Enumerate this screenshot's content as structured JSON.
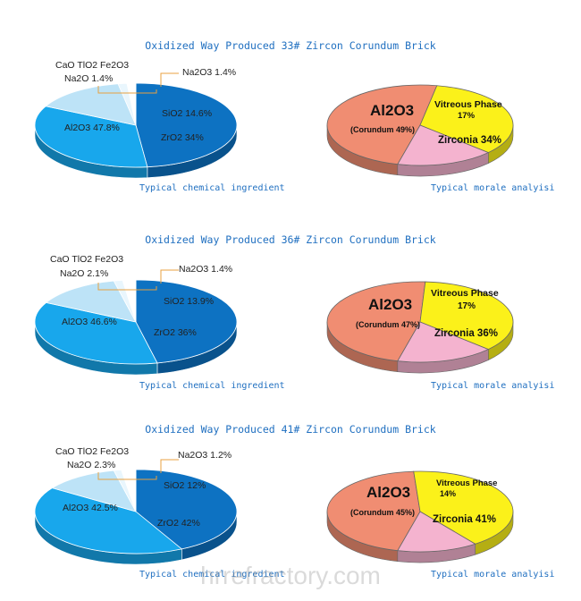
{
  "watermark": "hrrefractory.com",
  "colors": {
    "al2o3_chem": "#0d72c2",
    "zro2_chem": "#18a7ec",
    "sio2_chem": "#bde3f7",
    "na2o3_chem": "#e9f6fd",
    "cao_chem": "#ffffff",
    "corundum": "#f08d72",
    "vitreous": "#f4b3cf",
    "zirconia": "#fbf11a"
  },
  "charts": [
    {
      "title": "Oxidized Way Produced 33# Zircon Corundum Brick",
      "caption_left": "Typical chemical ingredient",
      "caption_right": "Typical morale analyisi",
      "callout_cao_line1": "CaO TlO2 Fe2O3",
      "callout_cao_line2": "Na2O 1.4%",
      "callout_na2o3": "Na2O3 1.4%",
      "chem_labels": {
        "al2o3": "Al2O3 47.8%",
        "zro2": "ZrO2 34%",
        "sio2": "SiO2 14.6%"
      },
      "mineral_labels": {
        "al2o3": "Al2O3",
        "corundum": "(Corundum 49%)",
        "vitreous_line1": "Vitreous Phase",
        "vitreous_line2": "17%",
        "zirconia": "Zirconia 34%"
      },
      "chem_slices": [
        {
          "name": "Al2O3",
          "value": 47.8
        },
        {
          "name": "ZrO2",
          "value": 34
        },
        {
          "name": "SiO2",
          "value": 14.6
        },
        {
          "name": "Na2O3",
          "value": 1.4
        },
        {
          "name": "CaO TlO2 Fe2O3 Na2O",
          "value": 1.4
        }
      ],
      "mineral_slices": [
        {
          "name": "Corundum",
          "value": 49
        },
        {
          "name": "Zirconia",
          "value": 34
        },
        {
          "name": "Vitreous Phase",
          "value": 17
        }
      ]
    },
    {
      "title": "Oxidized Way Produced 36# Zircon Corundum Brick",
      "caption_left": "Typical chemical ingredient",
      "caption_right": "Typical morale analyisi",
      "callout_cao_line1": "CaO TlO2 Fe2O3",
      "callout_cao_line2": "Na2O 2.1%",
      "callout_na2o3": "Na2O3 1.4%",
      "chem_labels": {
        "al2o3": "Al2O3 46.6%",
        "zro2": "ZrO2 36%",
        "sio2": "SiO2 13.9%"
      },
      "mineral_labels": {
        "al2o3": "Al2O3",
        "corundum": "(Corundum 47%)",
        "vitreous_line1": "Vitreous Phase",
        "vitreous_line2": "17%",
        "zirconia": "Zirconia 36%"
      },
      "chem_slices": [
        {
          "name": "Al2O3",
          "value": 46.6
        },
        {
          "name": "ZrO2",
          "value": 36
        },
        {
          "name": "SiO2",
          "value": 13.9
        },
        {
          "name": "Na2O3",
          "value": 1.4
        },
        {
          "name": "CaO TlO2 Fe2O3 Na2O",
          "value": 2.1
        }
      ],
      "mineral_slices": [
        {
          "name": "Corundum",
          "value": 47
        },
        {
          "name": "Zirconia",
          "value": 36
        },
        {
          "name": "Vitreous Phase",
          "value": 17
        }
      ]
    },
    {
      "title": "Oxidized Way Produced 41# Zircon Corundum Brick",
      "caption_left": "Typical chemical ingredient",
      "caption_right": "Typical morale analyisi",
      "callout_cao_line1": "CaO TlO2 Fe2O3",
      "callout_cao_line2": "Na2O 2.3%",
      "callout_na2o3": "Na2O3 1.2%",
      "chem_labels": {
        "al2o3": "Al2O3 42.5%",
        "zro2": "ZrO2 42%",
        "sio2": "SiO2 12%"
      },
      "mineral_labels": {
        "al2o3": "Al2O3",
        "corundum": "(Corundum 45%)",
        "vitreous_line1": "Vitreous Phase",
        "vitreous_line2": "14%",
        "zirconia": "Zirconia 41%"
      },
      "chem_slices": [
        {
          "name": "Al2O3",
          "value": 42.5
        },
        {
          "name": "ZrO2",
          "value": 42
        },
        {
          "name": "SiO2",
          "value": 12
        },
        {
          "name": "Na2O3",
          "value": 1.2
        },
        {
          "name": "CaO TlO2 Fe2O3 Na2O",
          "value": 2.3
        }
      ],
      "mineral_slices": [
        {
          "name": "Corundum",
          "value": 45
        },
        {
          "name": "Zirconia",
          "value": 41
        },
        {
          "name": "Vitreous Phase",
          "value": 14
        }
      ]
    }
  ],
  "chart_data": [
    {
      "type": "pie",
      "title": "Oxidized Way Produced 33# Zircon Corundum Brick",
      "subtitle": "Typical chemical ingredient",
      "categories": [
        "Al2O3",
        "ZrO2",
        "SiO2",
        "Na2O3",
        "CaO TlO2 Fe2O3 Na2O"
      ],
      "values": [
        47.8,
        34,
        14.6,
        1.4,
        1.4
      ]
    },
    {
      "type": "pie",
      "title": "Oxidized Way Produced 33# Zircon Corundum Brick",
      "subtitle": "Typical morale analyisi",
      "categories": [
        "Corundum",
        "Zirconia",
        "Vitreous Phase"
      ],
      "values": [
        49,
        34,
        17
      ]
    },
    {
      "type": "pie",
      "title": "Oxidized Way Produced 36# Zircon Corundum Brick",
      "subtitle": "Typical chemical ingredient",
      "categories": [
        "Al2O3",
        "ZrO2",
        "SiO2",
        "Na2O3",
        "CaO TlO2 Fe2O3 Na2O"
      ],
      "values": [
        46.6,
        36,
        13.9,
        1.4,
        2.1
      ]
    },
    {
      "type": "pie",
      "title": "Oxidized Way Produced 36# Zircon Corundum Brick",
      "subtitle": "Typical morale analyisi",
      "categories": [
        "Corundum",
        "Zirconia",
        "Vitreous Phase"
      ],
      "values": [
        47,
        36,
        17
      ]
    },
    {
      "type": "pie",
      "title": "Oxidized Way Produced 41# Zircon Corundum Brick",
      "subtitle": "Typical chemical ingredient",
      "categories": [
        "Al2O3",
        "ZrO2",
        "SiO2",
        "Na2O3",
        "CaO TlO2 Fe2O3 Na2O"
      ],
      "values": [
        42.5,
        42,
        12,
        1.2,
        2.3
      ]
    },
    {
      "type": "pie",
      "title": "Oxidized Way Produced 41# Zircon Corundum Brick",
      "subtitle": "Typical morale analyisi",
      "categories": [
        "Corundum",
        "Zirconia",
        "Vitreous Phase"
      ],
      "values": [
        45,
        41,
        14
      ]
    }
  ]
}
